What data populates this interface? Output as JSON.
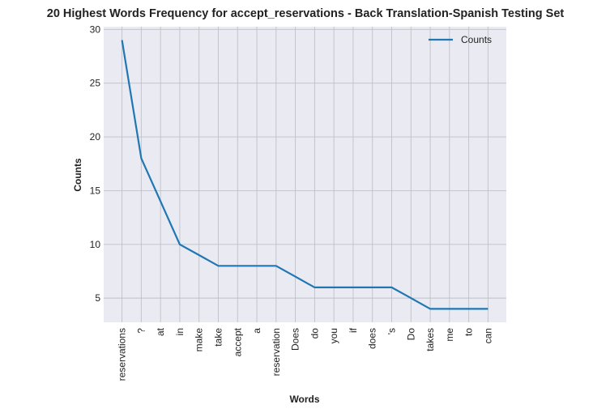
{
  "chart_data": {
    "type": "line",
    "title": "20 Highest Words Frequency for accept_reservations - Back Translation-Spanish Testing Set",
    "xlabel": "Words",
    "ylabel": "Counts",
    "categories": [
      "reservations",
      "?",
      "at",
      "in",
      "make",
      "take",
      "accept",
      "a",
      "reservation",
      "Does",
      "do",
      "you",
      "if",
      "does",
      "'s",
      "Do",
      "takes",
      "me",
      "to",
      "can"
    ],
    "series": [
      {
        "name": "Counts",
        "values": [
          29,
          18,
          14,
          10,
          9,
          8,
          8,
          8,
          8,
          7,
          6,
          6,
          6,
          6,
          6,
          5,
          4,
          4,
          4,
          4
        ]
      }
    ],
    "yticks": [
      5,
      10,
      15,
      20,
      25,
      30
    ],
    "ylim": [
      2.75,
      30.25
    ],
    "grid": true,
    "legend_position": "top-right",
    "colors": {
      "line": "#1f77b4",
      "plot_bg": "#eaeaf2",
      "grid": "#c0c0c8"
    }
  }
}
